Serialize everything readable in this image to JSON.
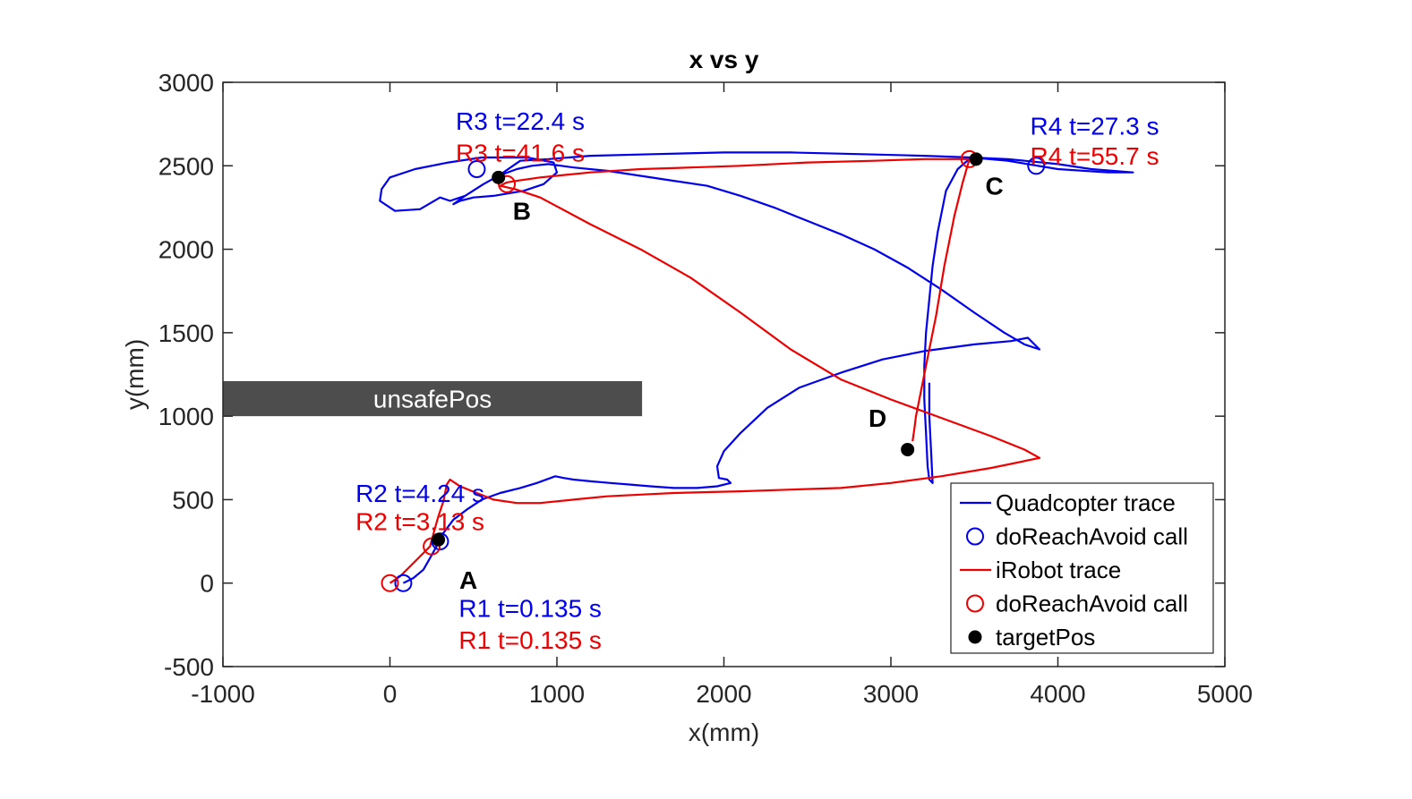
{
  "chart_data": {
    "type": "line",
    "title": "x vs y",
    "xlabel": "x(mm)",
    "ylabel": "y(mm)",
    "xlim": [
      -1000,
      5000
    ],
    "ylim": [
      -500,
      3000
    ],
    "xticks": [
      -1000,
      0,
      1000,
      2000,
      3000,
      4000,
      5000
    ],
    "yticks": [
      -500,
      0,
      500,
      1000,
      1500,
      2000,
      2500,
      3000
    ],
    "grid": false,
    "legend_position": "bottom-right",
    "colors": {
      "quad": "#0000ee",
      "irobot": "#ee0000",
      "target": "#000000",
      "unsafe": "#4d4d4d"
    },
    "unsafe_region": {
      "label": "unsafePos",
      "x": [
        -1000,
        1510
      ],
      "y": [
        1000,
        1210
      ]
    },
    "series": [
      {
        "name": "Quadcopter trace",
        "color": "#0000ee",
        "points": [
          [
            80,
            0
          ],
          [
            140,
            30
          ],
          [
            200,
            80
          ],
          [
            240,
            150
          ],
          [
            290,
            240
          ],
          [
            320,
            300
          ],
          [
            380,
            380
          ],
          [
            460,
            440
          ],
          [
            550,
            500
          ],
          [
            660,
            540
          ],
          [
            780,
            570
          ],
          [
            880,
            600
          ],
          [
            990,
            640
          ],
          [
            1040,
            630
          ],
          [
            1100,
            620
          ],
          [
            1200,
            610
          ],
          [
            1320,
            600
          ],
          [
            1440,
            590
          ],
          [
            1560,
            580
          ],
          [
            1700,
            570
          ],
          [
            1840,
            570
          ],
          [
            1960,
            580
          ],
          [
            2040,
            600
          ],
          [
            2020,
            620
          ],
          [
            1970,
            630
          ],
          [
            1960,
            700
          ],
          [
            2000,
            790
          ],
          [
            2100,
            900
          ],
          [
            2260,
            1050
          ],
          [
            2450,
            1170
          ],
          [
            2700,
            1260
          ],
          [
            2950,
            1340
          ],
          [
            3200,
            1390
          ],
          [
            3500,
            1430
          ],
          [
            3720,
            1450
          ],
          [
            3820,
            1470
          ],
          [
            3890,
            1400
          ],
          [
            3800,
            1430
          ],
          [
            3680,
            1500
          ],
          [
            3500,
            1620
          ],
          [
            3300,
            1760
          ],
          [
            3100,
            1890
          ],
          [
            2900,
            2000
          ],
          [
            2700,
            2090
          ],
          [
            2500,
            2170
          ],
          [
            2300,
            2250
          ],
          [
            2100,
            2320
          ],
          [
            1900,
            2380
          ],
          [
            1700,
            2410
          ],
          [
            1500,
            2440
          ],
          [
            1300,
            2470
          ],
          [
            1100,
            2490
          ],
          [
            950,
            2510
          ],
          [
            850,
            2500
          ],
          [
            760,
            2480
          ],
          [
            650,
            2440
          ],
          [
            560,
            2390
          ],
          [
            450,
            2320
          ],
          [
            360,
            2290
          ],
          [
            300,
            2310
          ],
          [
            180,
            2240
          ],
          [
            30,
            2230
          ],
          [
            -60,
            2290
          ],
          [
            -50,
            2360
          ],
          [
            0,
            2430
          ],
          [
            150,
            2480
          ],
          [
            350,
            2520
          ],
          [
            550,
            2550
          ],
          [
            820,
            2550
          ],
          [
            980,
            2520
          ],
          [
            1000,
            2460
          ],
          [
            920,
            2390
          ],
          [
            800,
            2350
          ],
          [
            620,
            2320
          ],
          [
            500,
            2310
          ],
          [
            420,
            2290
          ],
          [
            380,
            2270
          ],
          [
            450,
            2320
          ],
          [
            560,
            2390
          ],
          [
            650,
            2440
          ],
          [
            780,
            2530
          ],
          [
            950,
            2540
          ],
          [
            1200,
            2560
          ],
          [
            1600,
            2570
          ],
          [
            2000,
            2580
          ],
          [
            2400,
            2580
          ],
          [
            2800,
            2570
          ],
          [
            3200,
            2560
          ],
          [
            3480,
            2550
          ],
          [
            3700,
            2540
          ],
          [
            4000,
            2510
          ],
          [
            4200,
            2480
          ],
          [
            4450,
            2460
          ],
          [
            4300,
            2460
          ],
          [
            4000,
            2480
          ],
          [
            3700,
            2530
          ],
          [
            3480,
            2550
          ],
          [
            3400,
            2480
          ],
          [
            3330,
            2350
          ],
          [
            3280,
            2100
          ],
          [
            3250,
            1900
          ],
          [
            3230,
            1700
          ],
          [
            3210,
            1500
          ],
          [
            3200,
            1300
          ],
          [
            3200,
            1100
          ],
          [
            3210,
            900
          ],
          [
            3220,
            700
          ],
          [
            3230,
            620
          ],
          [
            3250,
            600
          ],
          [
            3240,
            800
          ],
          [
            3230,
            1000
          ],
          [
            3230,
            1200
          ]
        ]
      },
      {
        "name": "iRobot trace",
        "color": "#ee0000",
        "points": [
          [
            0,
            0
          ],
          [
            60,
            40
          ],
          [
            120,
            100
          ],
          [
            180,
            160
          ],
          [
            240,
            220
          ],
          [
            270,
            330
          ],
          [
            290,
            400
          ],
          [
            320,
            490
          ],
          [
            340,
            590
          ],
          [
            360,
            620
          ],
          [
            420,
            580
          ],
          [
            520,
            540
          ],
          [
            620,
            500
          ],
          [
            760,
            480
          ],
          [
            900,
            480
          ],
          [
            1100,
            500
          ],
          [
            1300,
            520
          ],
          [
            1500,
            530
          ],
          [
            1700,
            540
          ],
          [
            1900,
            545
          ],
          [
            2100,
            550
          ],
          [
            2400,
            560
          ],
          [
            2700,
            570
          ],
          [
            3000,
            600
          ],
          [
            3300,
            640
          ],
          [
            3600,
            690
          ],
          [
            3890,
            750
          ],
          [
            3800,
            800
          ],
          [
            3600,
            880
          ],
          [
            3300,
            990
          ],
          [
            3000,
            1100
          ],
          [
            2700,
            1220
          ],
          [
            2400,
            1400
          ],
          [
            2100,
            1620
          ],
          [
            1800,
            1830
          ],
          [
            1500,
            2000
          ],
          [
            1200,
            2150
          ],
          [
            900,
            2310
          ],
          [
            750,
            2360
          ],
          [
            660,
            2380
          ],
          [
            700,
            2400
          ],
          [
            760,
            2410
          ],
          [
            900,
            2430
          ],
          [
            1200,
            2460
          ],
          [
            1500,
            2480
          ],
          [
            1800,
            2490
          ],
          [
            2100,
            2500
          ],
          [
            2500,
            2520
          ],
          [
            2900,
            2530
          ],
          [
            3200,
            2540
          ],
          [
            3470,
            2540
          ],
          [
            3430,
            2400
          ],
          [
            3380,
            2200
          ],
          [
            3320,
            1900
          ],
          [
            3270,
            1600
          ],
          [
            3220,
            1350
          ],
          [
            3180,
            1150
          ],
          [
            3150,
            1000
          ],
          [
            3140,
            920
          ],
          [
            3130,
            850
          ]
        ]
      }
    ],
    "markers": {
      "quad_calls": {
        "name": "doReachAvoid call",
        "points": [
          [
            80,
            0
          ],
          [
            300,
            250
          ],
          [
            520,
            2480
          ],
          [
            3870,
            2500
          ]
        ]
      },
      "irobot_calls": {
        "name": "doReachAvoid call",
        "points": [
          [
            0,
            0
          ],
          [
            250,
            220
          ],
          [
            700,
            2390
          ],
          [
            3470,
            2540
          ]
        ]
      },
      "targets": {
        "name": "targetPos",
        "points": [
          [
            290,
            260
          ],
          [
            650,
            2430
          ],
          [
            3510,
            2540
          ],
          [
            3100,
            800
          ]
        ]
      }
    },
    "point_labels": [
      {
        "text": "A",
        "x": 470,
        "y": 20
      },
      {
        "text": "B",
        "x": 790,
        "y": 2230
      },
      {
        "text": "C",
        "x": 3620,
        "y": 2380
      },
      {
        "text": "D",
        "x": 2920,
        "y": 990
      }
    ],
    "annotations": [
      {
        "text": "R1 t=0.135 s",
        "color": "#0000ee",
        "x": 840,
        "y": -150
      },
      {
        "text": "R1 t=0.135 s",
        "color": "#ee0000",
        "x": 840,
        "y": -340
      },
      {
        "text": "R2 t=4.24 s",
        "color": "#0000ee",
        "x": 180,
        "y": 540
      },
      {
        "text": "R2 t=3.13 s",
        "color": "#ee0000",
        "x": 180,
        "y": 370
      },
      {
        "text": "R3 t=22.4 s",
        "color": "#0000ee",
        "x": 780,
        "y": 2770
      },
      {
        "text": "R3 t=41.6 s",
        "color": "#ee0000",
        "x": 780,
        "y": 2580
      },
      {
        "text": "R4 t=27.3 s",
        "color": "#0000ee",
        "x": 4220,
        "y": 2740
      },
      {
        "text": "R4 t=55.7 s",
        "color": "#ee0000",
        "x": 4220,
        "y": 2560
      }
    ],
    "legend": [
      {
        "label": "Quadcopter trace",
        "kind": "line",
        "color": "#0000ee"
      },
      {
        "label": "doReachAvoid call",
        "kind": "circle",
        "color": "#0000ee"
      },
      {
        "label": "iRobot trace",
        "kind": "line",
        "color": "#ee0000"
      },
      {
        "label": "doReachAvoid call",
        "kind": "circle",
        "color": "#ee0000"
      },
      {
        "label": "targetPos",
        "kind": "dot",
        "color": "#000000"
      }
    ]
  }
}
